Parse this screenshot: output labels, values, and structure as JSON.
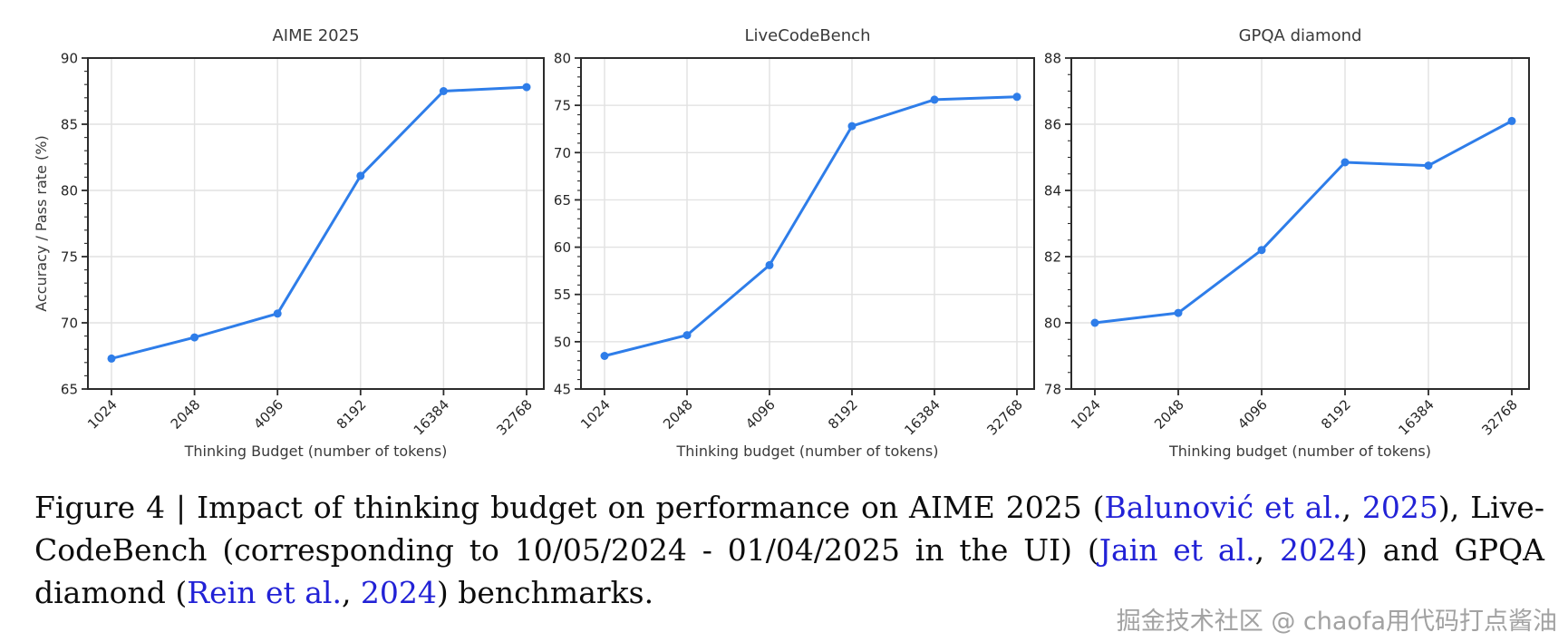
{
  "chart_data": [
    {
      "type": "line",
      "title": "AIME 2025",
      "xlabel": "Thinking Budget (number of tokens)",
      "ylabel": "Accuracy / Pass rate (%)",
      "categories": [
        "1024",
        "2048",
        "4096",
        "8192",
        "16384",
        "32768"
      ],
      "values": [
        67.3,
        68.9,
        70.7,
        81.1,
        87.5,
        87.8
      ],
      "ylim": [
        65,
        90
      ],
      "yticks": [
        65,
        70,
        75,
        80,
        85,
        90
      ],
      "yminor_step": 1,
      "grid": true,
      "line_color": "#2e7de9"
    },
    {
      "type": "line",
      "title": "LiveCodeBench",
      "xlabel": "Thinking budget (number of tokens)",
      "ylabel": "",
      "categories": [
        "1024",
        "2048",
        "4096",
        "8192",
        "16384",
        "32768"
      ],
      "values": [
        48.5,
        50.7,
        58.1,
        72.8,
        75.6,
        75.9
      ],
      "ylim": [
        45,
        80
      ],
      "yticks": [
        45,
        50,
        55,
        60,
        65,
        70,
        75,
        80
      ],
      "yminor_step": 1,
      "grid": true,
      "line_color": "#2e7de9"
    },
    {
      "type": "line",
      "title": "GPQA diamond",
      "xlabel": "Thinking budget (number of tokens)",
      "ylabel": "",
      "categories": [
        "1024",
        "2048",
        "4096",
        "8192",
        "16384",
        "32768"
      ],
      "values": [
        80.0,
        80.3,
        82.2,
        84.85,
        84.75,
        86.1
      ],
      "ylim": [
        78,
        88
      ],
      "yticks": [
        78,
        80,
        82,
        84,
        86,
        88
      ],
      "yminor_step": 0.5,
      "grid": true,
      "line_color": "#2e7de9"
    }
  ],
  "caption": {
    "link_color": "#2222d6",
    "lines": [
      {
        "segments": [
          {
            "t": "Figure 4 | Impact of thinking budget on performance on AIME 2025 (",
            "link": false
          },
          {
            "t": "Balunović et al.",
            "link": true
          },
          {
            "t": ", ",
            "link": false
          },
          {
            "t": "2025",
            "link": true
          },
          {
            "t": "), Live-",
            "link": false
          }
        ]
      },
      {
        "segments": [
          {
            "t": "CodeBench (corresponding to 10/05/2024 - 01/04/2025 in the UI) (",
            "link": false
          },
          {
            "t": "Jain et al.",
            "link": true
          },
          {
            "t": ", ",
            "link": false
          },
          {
            "t": "2024",
            "link": true
          },
          {
            "t": ") and GPQA",
            "link": false
          }
        ]
      },
      {
        "segments": [
          {
            "t": "diamond (",
            "link": false
          },
          {
            "t": "Rein et al.",
            "link": true
          },
          {
            "t": ", ",
            "link": false
          },
          {
            "t": "2024",
            "link": true
          },
          {
            "t": ") benchmarks.",
            "link": false
          }
        ]
      }
    ]
  },
  "watermark": {
    "text": "掘金技术社区 @ chaofa用代码打点酱油"
  }
}
